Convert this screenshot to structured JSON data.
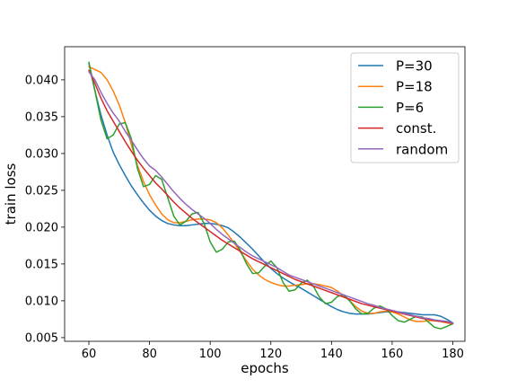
{
  "chart_data": {
    "type": "line",
    "xlabel": "epochs",
    "ylabel": "train loss",
    "xlim": [
      52,
      184
    ],
    "ylim": [
      0.0045,
      0.0445
    ],
    "xticks": [
      60,
      80,
      100,
      120,
      140,
      160,
      180
    ],
    "yticks": [
      0.005,
      0.01,
      0.015,
      0.02,
      0.025,
      0.03,
      0.035,
      0.04
    ],
    "xtick_labels": [
      "60",
      "80",
      "100",
      "120",
      "140",
      "160",
      "180"
    ],
    "ytick_labels": [
      "0.005",
      "0.010",
      "0.015",
      "0.020",
      "0.025",
      "0.030",
      "0.035",
      "0.040"
    ],
    "grid": false,
    "legend_position": "top-right",
    "series": [
      {
        "name": "P=30",
        "color": "#1f77b4",
        "x": [
          60,
          62,
          64,
          66,
          68,
          70,
          72,
          74,
          76,
          78,
          80,
          82,
          84,
          86,
          88,
          90,
          92,
          94,
          96,
          98,
          100,
          102,
          104,
          106,
          108,
          110,
          112,
          114,
          116,
          118,
          120,
          122,
          124,
          126,
          128,
          130,
          132,
          134,
          136,
          138,
          140,
          142,
          144,
          146,
          148,
          150,
          152,
          154,
          156,
          158,
          160,
          162,
          164,
          166,
          168,
          170,
          172,
          174,
          176,
          178,
          180
        ],
        "y": [
          0.0422,
          0.0385,
          0.0352,
          0.0325,
          0.0302,
          0.0285,
          0.027,
          0.0256,
          0.0244,
          0.0233,
          0.0223,
          0.0215,
          0.0209,
          0.0205,
          0.0203,
          0.0202,
          0.0202,
          0.0203,
          0.0204,
          0.0205,
          0.0205,
          0.0204,
          0.0202,
          0.0199,
          0.0193,
          0.0186,
          0.0178,
          0.017,
          0.0161,
          0.0152,
          0.0144,
          0.0137,
          0.0131,
          0.0126,
          0.0121,
          0.0117,
          0.0112,
          0.0107,
          0.0102,
          0.0097,
          0.0092,
          0.0088,
          0.0085,
          0.0083,
          0.0082,
          0.0082,
          0.0082,
          0.0083,
          0.0084,
          0.0085,
          0.0085,
          0.0085,
          0.0084,
          0.0083,
          0.0082,
          0.0081,
          0.0081,
          0.0081,
          0.0079,
          0.0075,
          0.007
        ]
      },
      {
        "name": "P=18",
        "color": "#ff7f0e",
        "x": [
          60,
          62,
          64,
          66,
          68,
          70,
          72,
          74,
          76,
          78,
          80,
          82,
          84,
          86,
          88,
          90,
          92,
          94,
          96,
          98,
          100,
          102,
          104,
          106,
          108,
          110,
          112,
          114,
          116,
          118,
          120,
          122,
          124,
          126,
          128,
          130,
          132,
          134,
          136,
          138,
          140,
          142,
          144,
          146,
          148,
          150,
          152,
          154,
          156,
          158,
          160,
          162,
          164,
          166,
          168,
          170,
          172,
          174,
          176,
          178,
          180
        ],
        "y": [
          0.0418,
          0.0414,
          0.041,
          0.04,
          0.0385,
          0.0366,
          0.0342,
          0.0312,
          0.0284,
          0.0262,
          0.0244,
          0.023,
          0.0218,
          0.021,
          0.0206,
          0.0206,
          0.0208,
          0.021,
          0.0211,
          0.0211,
          0.021,
          0.0206,
          0.0199,
          0.0189,
          0.0178,
          0.0166,
          0.0154,
          0.0143,
          0.0135,
          0.0129,
          0.0125,
          0.0122,
          0.012,
          0.012,
          0.0121,
          0.0122,
          0.0123,
          0.0123,
          0.0122,
          0.012,
          0.0118,
          0.0113,
          0.0107,
          0.01,
          0.0092,
          0.0086,
          0.0083,
          0.0083,
          0.0085,
          0.0086,
          0.0085,
          0.0082,
          0.0078,
          0.0074,
          0.0072,
          0.0072,
          0.0073,
          0.0073,
          0.0072,
          0.007,
          0.0069
        ]
      },
      {
        "name": "P=6",
        "color": "#2ca02c",
        "x": [
          60,
          62,
          64,
          66,
          68,
          70,
          72,
          74,
          76,
          78,
          80,
          82,
          84,
          86,
          88,
          90,
          92,
          94,
          96,
          98,
          100,
          102,
          104,
          106,
          108,
          110,
          112,
          114,
          116,
          118,
          120,
          122,
          124,
          126,
          128,
          130,
          132,
          134,
          136,
          138,
          140,
          142,
          144,
          146,
          148,
          150,
          152,
          154,
          156,
          158,
          160,
          162,
          164,
          166,
          168,
          170,
          172,
          174,
          176,
          178,
          180
        ],
        "y": [
          0.0424,
          0.0385,
          0.0345,
          0.032,
          0.0325,
          0.034,
          0.0342,
          0.032,
          0.028,
          0.0255,
          0.0258,
          0.027,
          0.0265,
          0.024,
          0.0215,
          0.0203,
          0.0208,
          0.0218,
          0.022,
          0.0205,
          0.018,
          0.0166,
          0.017,
          0.018,
          0.0181,
          0.0168,
          0.015,
          0.0137,
          0.0138,
          0.0147,
          0.0154,
          0.0145,
          0.0125,
          0.0113,
          0.0115,
          0.0124,
          0.0128,
          0.012,
          0.0105,
          0.0096,
          0.0098,
          0.0106,
          0.0108,
          0.01,
          0.0089,
          0.0082,
          0.0083,
          0.009,
          0.0093,
          0.0089,
          0.008,
          0.0073,
          0.0071,
          0.0075,
          0.0079,
          0.0078,
          0.0071,
          0.0064,
          0.0062,
          0.0065,
          0.0069
        ]
      },
      {
        "name": "const.",
        "color": "#d62728",
        "x": [
          60,
          62,
          64,
          66,
          68,
          70,
          72,
          74,
          76,
          78,
          80,
          82,
          84,
          86,
          88,
          90,
          92,
          94,
          96,
          98,
          100,
          102,
          104,
          106,
          108,
          110,
          112,
          114,
          116,
          118,
          120,
          122,
          124,
          126,
          128,
          130,
          132,
          134,
          136,
          138,
          140,
          142,
          144,
          146,
          148,
          150,
          152,
          154,
          156,
          158,
          160,
          162,
          164,
          166,
          168,
          170,
          172,
          174,
          176,
          178,
          180
        ],
        "y": [
          0.0413,
          0.0395,
          0.0375,
          0.0358,
          0.0344,
          0.033,
          0.0316,
          0.0303,
          0.0291,
          0.028,
          0.027,
          0.026,
          0.0252,
          0.0243,
          0.0234,
          0.0226,
          0.0219,
          0.0212,
          0.0206,
          0.02,
          0.0194,
          0.0188,
          0.0182,
          0.0177,
          0.0172,
          0.0167,
          0.0162,
          0.0157,
          0.0153,
          0.0149,
          0.0145,
          0.0141,
          0.0137,
          0.0133,
          0.0129,
          0.0126,
          0.0123,
          0.012,
          0.0117,
          0.0114,
          0.0111,
          0.0108,
          0.0105,
          0.0102,
          0.0099,
          0.0096,
          0.0094,
          0.0092,
          0.009,
          0.0088,
          0.0086,
          0.0084,
          0.0082,
          0.008,
          0.0078,
          0.0076,
          0.0075,
          0.0073,
          0.0072,
          0.0071,
          0.0069
        ]
      },
      {
        "name": "random",
        "color": "#9467bd",
        "x": [
          60,
          62,
          64,
          66,
          68,
          70,
          72,
          74,
          76,
          78,
          80,
          82,
          84,
          86,
          88,
          90,
          92,
          94,
          96,
          98,
          100,
          102,
          104,
          106,
          108,
          110,
          112,
          114,
          116,
          118,
          120,
          122,
          124,
          126,
          128,
          130,
          132,
          134,
          136,
          138,
          140,
          142,
          144,
          146,
          148,
          150,
          152,
          154,
          156,
          158,
          160,
          162,
          164,
          166,
          168,
          170,
          172,
          174,
          176,
          178,
          180
        ],
        "y": [
          0.0411,
          0.04,
          0.0383,
          0.0368,
          0.0355,
          0.0344,
          0.033,
          0.0318,
          0.0305,
          0.0293,
          0.0283,
          0.0277,
          0.0268,
          0.0258,
          0.0248,
          0.0239,
          0.0231,
          0.0224,
          0.0218,
          0.0212,
          0.0205,
          0.0197,
          0.019,
          0.0184,
          0.0178,
          0.0172,
          0.0166,
          0.0161,
          0.0157,
          0.0153,
          0.0149,
          0.0145,
          0.014,
          0.0135,
          0.0132,
          0.0129,
          0.0126,
          0.0123,
          0.012,
          0.0117,
          0.0114,
          0.0111,
          0.0108,
          0.0105,
          0.0102,
          0.0099,
          0.0096,
          0.0094,
          0.0091,
          0.0089,
          0.0087,
          0.0085,
          0.0083,
          0.0081,
          0.0079,
          0.0077,
          0.0076,
          0.0074,
          0.0073,
          0.0072,
          0.007
        ]
      }
    ]
  }
}
